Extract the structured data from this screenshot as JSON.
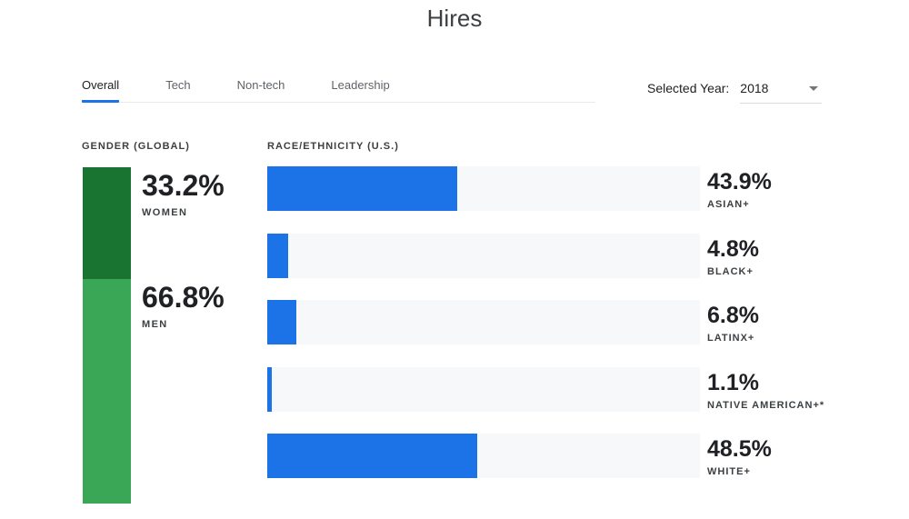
{
  "header": {
    "title": "Hires"
  },
  "tabs": {
    "items": [
      {
        "label": "Overall",
        "active": true
      },
      {
        "label": "Tech",
        "active": false
      },
      {
        "label": "Non-tech",
        "active": false
      },
      {
        "label": "Leadership",
        "active": false
      }
    ]
  },
  "year_selector": {
    "label": "Selected Year:",
    "value": "2018"
  },
  "colors": {
    "accent_blue": "#1c73e8",
    "tab_underline_blue": "#1a73e8",
    "women_dark_green": "#1a7431",
    "men_light_green": "#3aa757",
    "bar_track_gray": "#f6f8fa",
    "text_dark": "#202124",
    "text_gray": "#5f6368"
  },
  "gender": {
    "section_label": "GENDER (GLOBAL)",
    "segments": [
      {
        "value": 33.2,
        "display": "33.2%",
        "label": "WOMEN"
      },
      {
        "value": 66.8,
        "display": "66.8%",
        "label": "MEN"
      }
    ]
  },
  "race": {
    "section_label": "RACE/ETHNICITY (U.S.)",
    "rows": [
      {
        "value": 43.9,
        "display": "43.9%",
        "label": "ASIAN+"
      },
      {
        "value": 4.8,
        "display": "4.8%",
        "label": "BLACK+"
      },
      {
        "value": 6.8,
        "display": "6.8%",
        "label": "LATINX+"
      },
      {
        "value": 1.1,
        "display": "1.1%",
        "label": "NATIVE AMERICAN+*"
      },
      {
        "value": 48.5,
        "display": "48.5%",
        "label": "WHITE+"
      }
    ]
  },
  "chart_data": [
    {
      "type": "bar",
      "title": "GENDER (GLOBAL)",
      "orientation": "vertical-stacked",
      "categories": [
        "WOMEN",
        "MEN"
      ],
      "values": [
        33.2,
        66.8
      ],
      "unit": "%",
      "colors": [
        "#1a7431",
        "#3aa757"
      ],
      "legend_position": "right-of-bar",
      "grid": false
    },
    {
      "type": "bar",
      "title": "RACE/ETHNICITY (U.S.)",
      "orientation": "horizontal",
      "categories": [
        "ASIAN+",
        "BLACK+",
        "LATINX+",
        "NATIVE AMERICAN+*",
        "WHITE+"
      ],
      "values": [
        43.9,
        4.8,
        6.8,
        1.1,
        48.5
      ],
      "unit": "%",
      "xlim": [
        0,
        100
      ],
      "bar_color": "#1c73e8",
      "track_color": "#f6f8fa",
      "value_labels_position": "right",
      "grid": false
    }
  ]
}
